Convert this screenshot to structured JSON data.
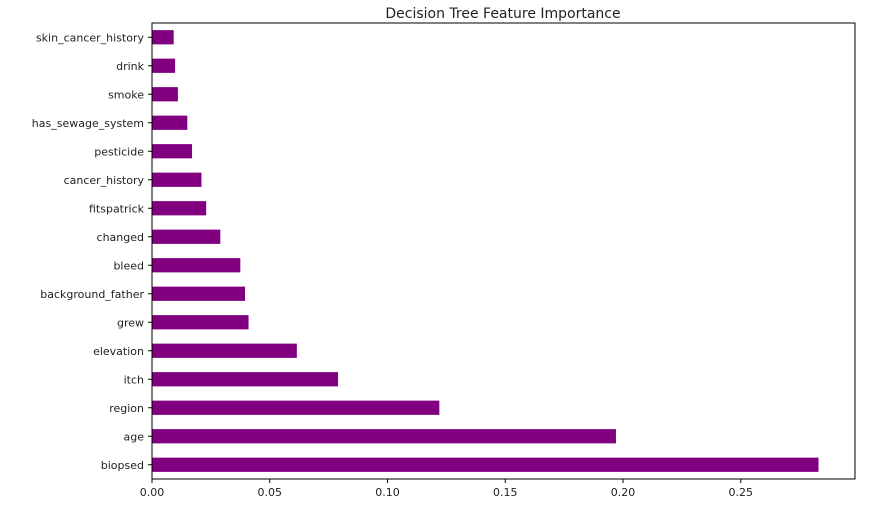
{
  "chart_data": {
    "type": "bar",
    "orientation": "horizontal",
    "title": "Decision Tree Feature Importance",
    "xlabel": "",
    "ylabel": "",
    "xlim": [
      0,
      0.2985
    ],
    "categories": [
      "biopsed",
      "age",
      "region",
      "itch",
      "elevation",
      "grew",
      "background_father",
      "bleed",
      "changed",
      "fitspatrick",
      "cancer_history",
      "pesticide",
      "has_sewage_system",
      "smoke",
      "drink",
      "skin_cancer_history"
    ],
    "values": [
      0.283,
      0.197,
      0.122,
      0.079,
      0.0615,
      0.041,
      0.0395,
      0.0375,
      0.029,
      0.023,
      0.021,
      0.017,
      0.015,
      0.011,
      0.0098,
      0.0092
    ],
    "xticks": [
      0.0,
      0.05,
      0.1,
      0.15,
      0.2,
      0.25
    ],
    "xtick_labels": [
      "0.00",
      "0.05",
      "0.10",
      "0.15",
      "0.20",
      "0.25"
    ],
    "bar_color": "#800080",
    "grid": false,
    "legend": false
  }
}
